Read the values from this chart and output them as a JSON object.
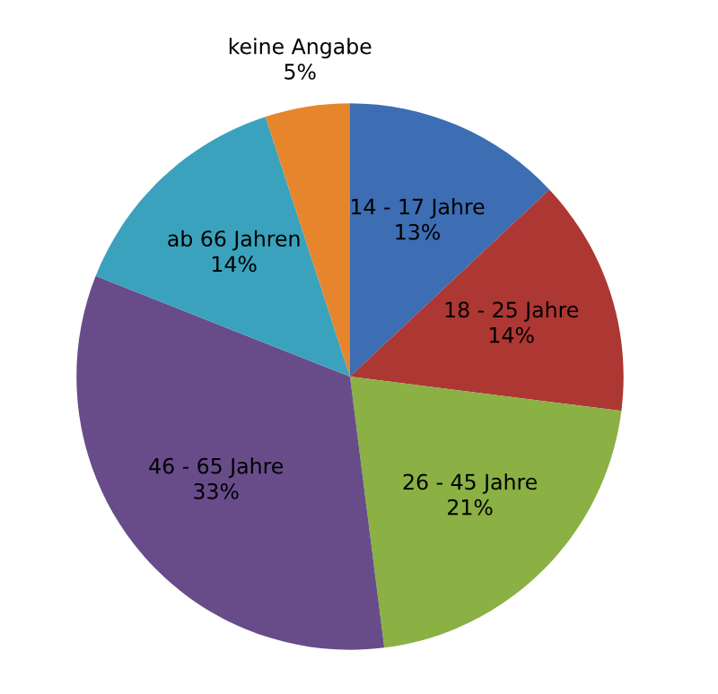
{
  "chart_data": {
    "type": "pie",
    "categories": [
      "14 - 17 Jahre",
      "18 - 25 Jahre",
      "26 - 45 Jahre",
      "46 - 65 Jahre",
      "ab 66 Jahren",
      "keine Angabe"
    ],
    "values": [
      13,
      14,
      21,
      33,
      14,
      5
    ],
    "value_labels": [
      "13%",
      "14%",
      "21%",
      "33%",
      "14%",
      "5%"
    ],
    "colors": [
      "#3d6db3",
      "#ad3733",
      "#8bb043",
      "#684c8a",
      "#3aa2bd",
      "#e7852c"
    ],
    "legend": false
  }
}
